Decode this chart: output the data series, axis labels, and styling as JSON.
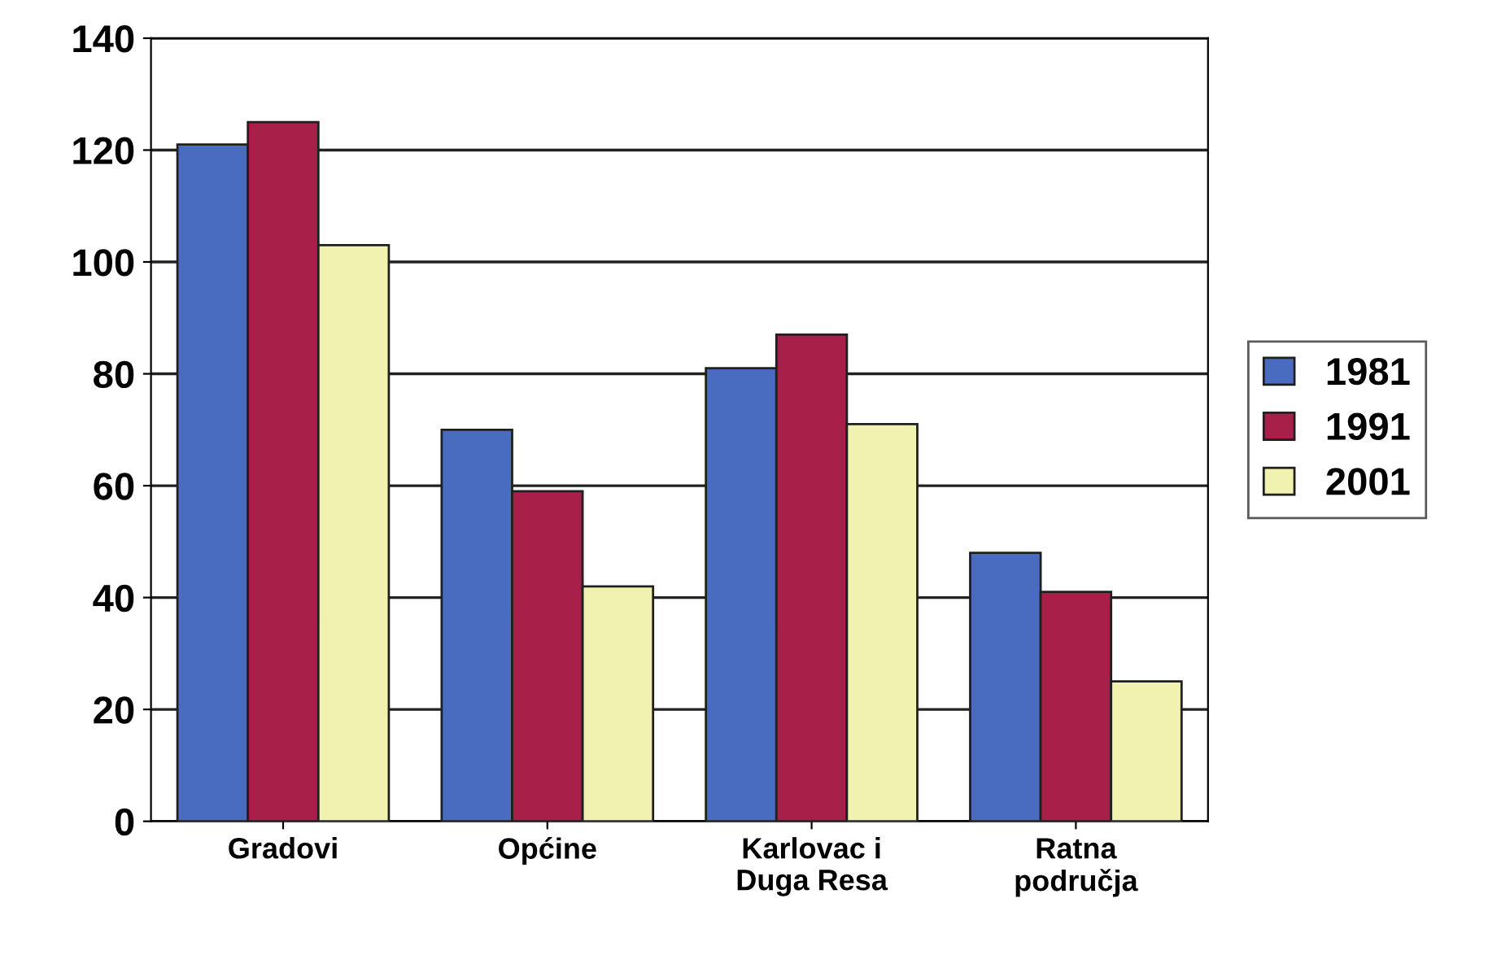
{
  "chart_data": {
    "type": "bar",
    "categories": [
      "Gradovi",
      "Općine",
      "Karlovac i\nDuga Resa",
      "Ratna\npodručja"
    ],
    "series": [
      {
        "name": "1981",
        "color": "#4a6cc0",
        "values": [
          121,
          70,
          81,
          48
        ]
      },
      {
        "name": "1991",
        "color": "#a8204a",
        "values": [
          125,
          59,
          87,
          41
        ]
      },
      {
        "name": "2001",
        "color": "#f2f2b0",
        "values": [
          103,
          42,
          71,
          25
        ]
      }
    ],
    "ylim": [
      0,
      140
    ],
    "yticks": [
      0,
      20,
      40,
      60,
      80,
      100,
      120,
      140
    ],
    "grid": "y",
    "legend": "right"
  }
}
